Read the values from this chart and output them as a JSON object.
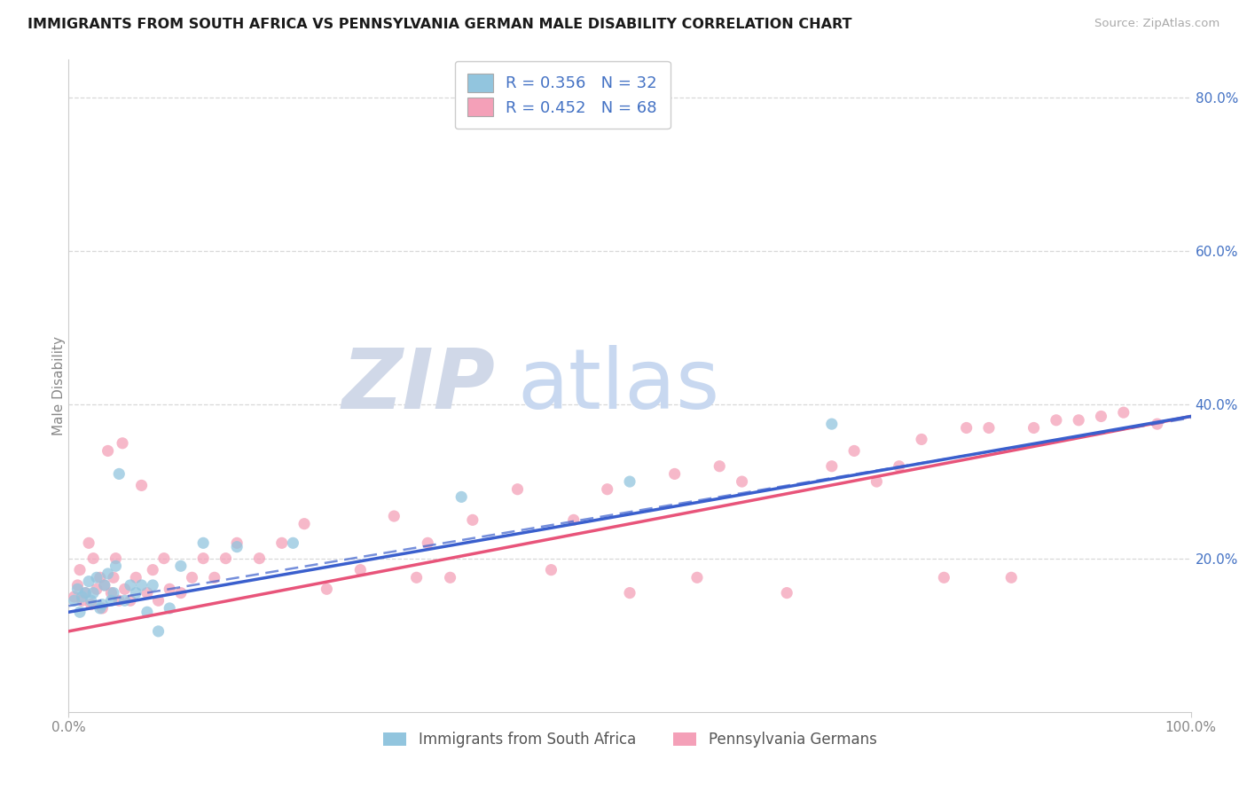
{
  "title": "IMMIGRANTS FROM SOUTH AFRICA VS PENNSYLVANIA GERMAN MALE DISABILITY CORRELATION CHART",
  "source": "Source: ZipAtlas.com",
  "ylabel": "Male Disability",
  "color_blue": "#92c5de",
  "color_pink": "#f4a0b8",
  "color_blue_line": "#3a5fcd",
  "color_pink_line": "#e8547a",
  "color_blue_text": "#4472c4",
  "color_pink_text": "#e84393",
  "legend_label1": "Immigrants from South Africa",
  "legend_label2": "Pennsylvania Germans",
  "blue_R": "0.356",
  "blue_N": "32",
  "pink_R": "0.452",
  "pink_N": "68",
  "blue_scatter_x": [
    0.005,
    0.008,
    0.01,
    0.012,
    0.015,
    0.018,
    0.02,
    0.022,
    0.025,
    0.028,
    0.03,
    0.032,
    0.035,
    0.038,
    0.04,
    0.042,
    0.045,
    0.05,
    0.055,
    0.06,
    0.065,
    0.07,
    0.075,
    0.08,
    0.09,
    0.1,
    0.12,
    0.15,
    0.2,
    0.35,
    0.5,
    0.68
  ],
  "blue_scatter_y": [
    0.145,
    0.16,
    0.13,
    0.15,
    0.155,
    0.17,
    0.145,
    0.155,
    0.175,
    0.135,
    0.14,
    0.165,
    0.18,
    0.145,
    0.155,
    0.19,
    0.31,
    0.145,
    0.165,
    0.155,
    0.165,
    0.13,
    0.165,
    0.105,
    0.135,
    0.19,
    0.22,
    0.215,
    0.22,
    0.28,
    0.3,
    0.375
  ],
  "pink_scatter_x": [
    0.005,
    0.008,
    0.01,
    0.012,
    0.015,
    0.018,
    0.02,
    0.022,
    0.025,
    0.028,
    0.03,
    0.032,
    0.035,
    0.038,
    0.04,
    0.042,
    0.045,
    0.048,
    0.05,
    0.055,
    0.06,
    0.065,
    0.07,
    0.075,
    0.08,
    0.085,
    0.09,
    0.1,
    0.11,
    0.12,
    0.13,
    0.14,
    0.15,
    0.17,
    0.19,
    0.21,
    0.23,
    0.26,
    0.29,
    0.31,
    0.32,
    0.34,
    0.36,
    0.4,
    0.43,
    0.45,
    0.48,
    0.5,
    0.54,
    0.56,
    0.58,
    0.6,
    0.64,
    0.68,
    0.7,
    0.72,
    0.74,
    0.76,
    0.78,
    0.8,
    0.82,
    0.84,
    0.86,
    0.88,
    0.9,
    0.92,
    0.94,
    0.97
  ],
  "pink_scatter_y": [
    0.15,
    0.165,
    0.185,
    0.145,
    0.155,
    0.22,
    0.14,
    0.2,
    0.16,
    0.175,
    0.135,
    0.165,
    0.34,
    0.155,
    0.175,
    0.2,
    0.145,
    0.35,
    0.16,
    0.145,
    0.175,
    0.295,
    0.155,
    0.185,
    0.145,
    0.2,
    0.16,
    0.155,
    0.175,
    0.2,
    0.175,
    0.2,
    0.22,
    0.2,
    0.22,
    0.245,
    0.16,
    0.185,
    0.255,
    0.175,
    0.22,
    0.175,
    0.25,
    0.29,
    0.185,
    0.25,
    0.29,
    0.155,
    0.31,
    0.175,
    0.32,
    0.3,
    0.155,
    0.32,
    0.34,
    0.3,
    0.32,
    0.355,
    0.175,
    0.37,
    0.37,
    0.175,
    0.37,
    0.38,
    0.38,
    0.385,
    0.39,
    0.375
  ],
  "watermark_zip_color": "#d0d8e8",
  "watermark_atlas_color": "#c8d8f0",
  "grid_color": "#d8d8d8",
  "spine_color": "#cccccc",
  "tick_color": "#888888",
  "ylim_max": 0.85,
  "yticks_right": [
    0.2,
    0.4,
    0.6,
    0.8
  ],
  "ytick_labels_right": [
    "20.0%",
    "40.0%",
    "60.0%",
    "80.0%"
  ]
}
